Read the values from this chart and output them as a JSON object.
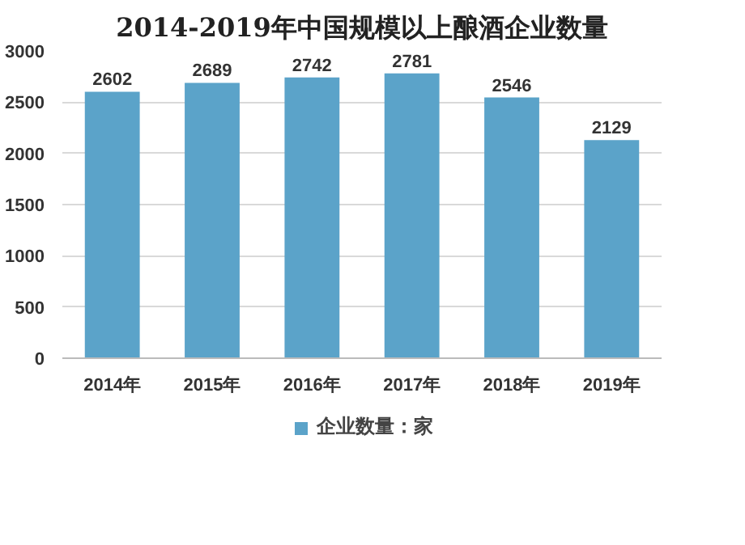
{
  "chart_data": {
    "type": "bar",
    "title": "2014-2019年中国规模以上酿酒企业数量",
    "categories": [
      "2014年",
      "2015年",
      "2016年",
      "2017年",
      "2018年",
      "2019年"
    ],
    "series": [
      {
        "name": "企业数量：家",
        "color": "#5ba3c9",
        "values": [
          2602,
          2689,
          2742,
          2781,
          2546,
          2129
        ]
      }
    ],
    "ylim": [
      0,
      3000
    ],
    "yticks": [
      0,
      500,
      1000,
      1500,
      2000,
      2500,
      3000
    ],
    "grid": "y",
    "legend": "bottom",
    "data_labels": true
  }
}
